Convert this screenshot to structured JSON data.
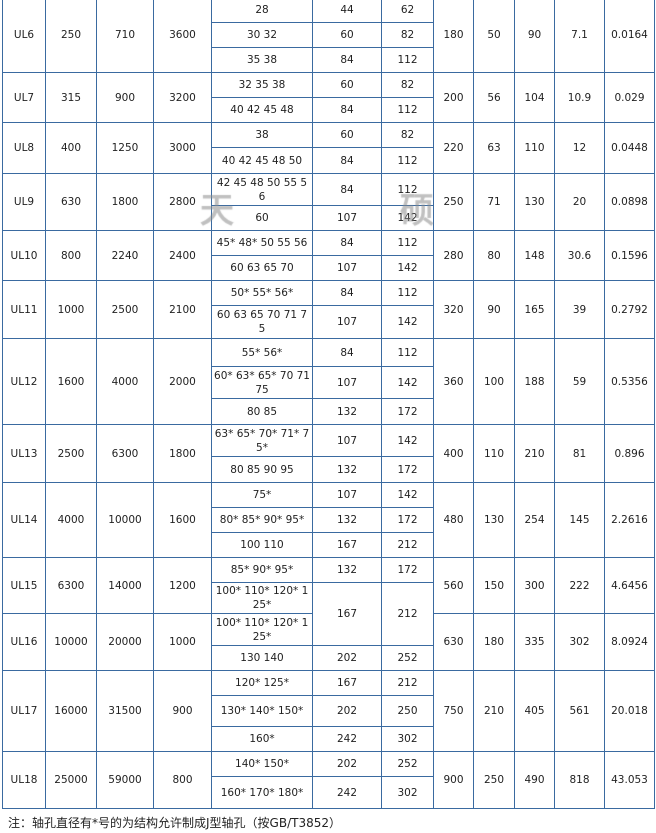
{
  "watermark": [
    "天",
    "硕"
  ],
  "groups": [
    {
      "model": "UL6",
      "tn": "250",
      "tmax": "710",
      "speed": "3600",
      "subrows": [
        {
          "d": "28",
          "l1": "44",
          "l": "62"
        },
        {
          "d": "30 32",
          "l1": "60",
          "l": "82"
        },
        {
          "d": "35 38",
          "l1": "84",
          "l": "112"
        }
      ],
      "D": "180",
      "b": "50",
      "c": "90",
      "weight": "7.1",
      "inertia": "0.0164"
    },
    {
      "model": "UL7",
      "tn": "315",
      "tmax": "900",
      "speed": "3200",
      "subrows": [
        {
          "d": "32 35 38",
          "l1": "60",
          "l": "82"
        },
        {
          "d": "40 42 45 48",
          "l1": "84",
          "l": "112"
        }
      ],
      "D": "200",
      "b": "56",
      "c": "104",
      "weight": "10.9",
      "inertia": "0.029"
    },
    {
      "model": "UL8",
      "tn": "400",
      "tmax": "1250",
      "speed": "3000",
      "subrows": [
        {
          "d": "38",
          "l1": "60",
          "l": "82"
        },
        {
          "d": "40 42 45 48 50",
          "l1": "84",
          "l": "112"
        }
      ],
      "D": "220",
      "b": "63",
      "c": "110",
      "weight": "12",
      "inertia": "0.0448"
    },
    {
      "model": "UL9",
      "tn": "630",
      "tmax": "1800",
      "speed": "2800",
      "subrows": [
        {
          "d": "42 45 48 50 55 56",
          "l1": "84",
          "l": "112"
        },
        {
          "d": "60",
          "l1": "107",
          "l": "142"
        }
      ],
      "D": "250",
      "b": "71",
      "c": "130",
      "weight": "20",
      "inertia": "0.0898"
    },
    {
      "model": "UL10",
      "tn": "800",
      "tmax": "2240",
      "speed": "2400",
      "subrows": [
        {
          "d": "45* 48* 50 55 56",
          "l1": "84",
          "l": "112"
        },
        {
          "d": "60 63 65 70",
          "l1": "107",
          "l": "142"
        }
      ],
      "D": "280",
      "b": "80",
      "c": "148",
      "weight": "30.6",
      "inertia": "0.1596"
    },
    {
      "model": "UL11",
      "tn": "1000",
      "tmax": "2500",
      "speed": "2100",
      "subrows": [
        {
          "d": "50* 55* 56*",
          "l1": "84",
          "l": "112"
        },
        {
          "d": "60 63 65 70 71 75",
          "l1": "107",
          "l": "142"
        }
      ],
      "D": "320",
      "b": "90",
      "c": "165",
      "weight": "39",
      "inertia": "0.2792"
    },
    {
      "model": "UL12",
      "tn": "1600",
      "tmax": "4000",
      "speed": "2000",
      "subrows": [
        {
          "d": "55* 56*",
          "l1": "84",
          "l": "112"
        },
        {
          "d": "60* 63* 65* 70 71 75",
          "l1": "107",
          "l": "142"
        },
        {
          "d": "80 85",
          "l1": "132",
          "l": "172"
        }
      ],
      "D": "360",
      "b": "100",
      "c": "188",
      "weight": "59",
      "inertia": "0.5356"
    },
    {
      "model": "UL13",
      "tn": "2500",
      "tmax": "6300",
      "speed": "1800",
      "subrows": [
        {
          "d": "63* 65* 70* 71* 75*",
          "l1": "107",
          "l": "142"
        },
        {
          "d": "80 85 90 95",
          "l1": "132",
          "l": "172"
        }
      ],
      "D": "400",
      "b": "110",
      "c": "210",
      "weight": "81",
      "inertia": "0.896"
    },
    {
      "model": "UL14",
      "tn": "4000",
      "tmax": "10000",
      "speed": "1600",
      "subrows": [
        {
          "d": "75*",
          "l1": "107",
          "l": "142"
        },
        {
          "d": "80* 85* 90* 95*",
          "l1": "132",
          "l": "172"
        },
        {
          "d": "100 110",
          "l1": "167",
          "l": "212"
        }
      ],
      "D": "480",
      "b": "130",
      "c": "254",
      "weight": "145",
      "inertia": "2.2616"
    },
    {
      "model": "UL15",
      "tn": "6300",
      "tmax": "14000",
      "speed": "1200",
      "subrows": [
        {
          "d": "85* 90* 95*",
          "l1": "132",
          "l": "172"
        },
        {
          "d": "100* 110* 120* 125*",
          "l1": "167",
          "l": "212"
        }
      ],
      "D": "560",
      "b": "150",
      "c": "300",
      "weight": "222",
      "inertia": "4.6456"
    },
    {
      "model": "UL16",
      "tn": "10000",
      "tmax": "20000",
      "speed": "1000",
      "subrows": [
        {
          "d": "100* 110* 120* 125*",
          "l1": null,
          "l": null
        },
        {
          "d": "130 140",
          "l1": "202",
          "l": "252"
        }
      ],
      "D": "630",
      "b": "180",
      "c": "335",
      "weight": "302",
      "inertia": "8.0924"
    },
    {
      "model": "UL17",
      "tn": "16000",
      "tmax": "31500",
      "speed": "900",
      "subrows": [
        {
          "d": "120* 125*",
          "l1": "167",
          "l": "212"
        },
        {
          "d": "130* 140* 150*",
          "l1": "202",
          "l": "250"
        },
        {
          "d": "160*",
          "l1": "242",
          "l": "302"
        }
      ],
      "D": "750",
      "b": "210",
      "c": "405",
      "weight": "561",
      "inertia": "20.018"
    },
    {
      "model": "UL18",
      "tn": "25000",
      "tmax": "59000",
      "speed": "800",
      "subrows": [
        {
          "d": "140* 150*",
          "l1": "202",
          "l": "252"
        },
        {
          "d": "160* 170* 180*",
          "l1": "242",
          "l": "302"
        }
      ],
      "D": "900",
      "b": "250",
      "c": "490",
      "weight": "818",
      "inertia": "43.053"
    }
  ],
  "note": "注：轴孔直径有*号的为结构允许制成J型轴孔（按GB/T3852）"
}
